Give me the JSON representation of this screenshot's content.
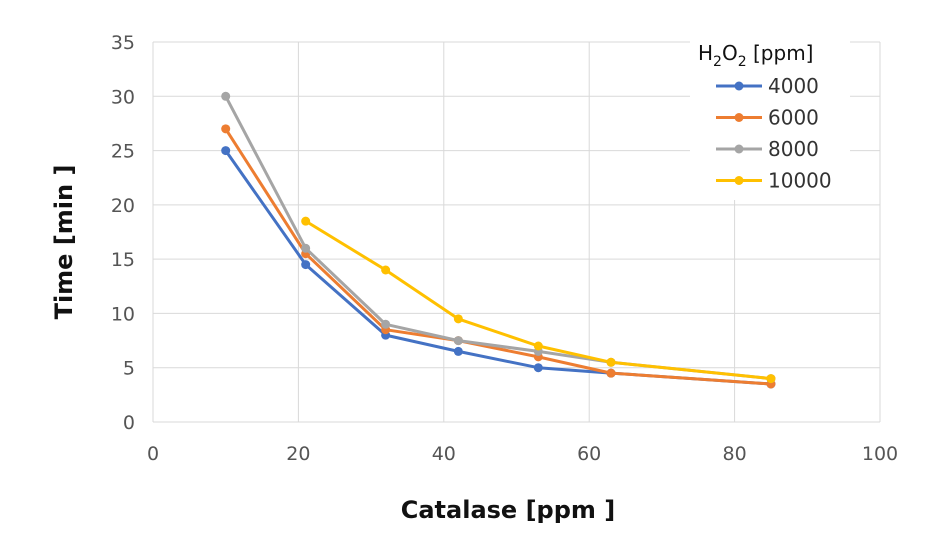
{
  "chart_data": {
    "type": "line",
    "xlabel": "Catalase [ppm ]",
    "ylabel": "Time [min ]",
    "xlim": [
      0,
      100
    ],
    "ylim": [
      0,
      35
    ],
    "xticks": [
      0,
      20,
      40,
      60,
      80,
      100
    ],
    "yticks": [
      0,
      5,
      10,
      15,
      20,
      25,
      30,
      35
    ],
    "grid": "both",
    "legend": {
      "position": "top-right",
      "title": {
        "main": "H",
        "sub1": "2",
        "mid": "O",
        "sub2": "2",
        "unit": " [ppm]"
      }
    },
    "series": [
      {
        "name": "4000",
        "color": "#4472C4",
        "points": [
          [
            10,
            25
          ],
          [
            21,
            14.5
          ],
          [
            32,
            8
          ],
          [
            42,
            6.5
          ],
          [
            53,
            5
          ],
          [
            63,
            4.5
          ],
          [
            85,
            3.5
          ]
        ]
      },
      {
        "name": "6000",
        "color": "#ED7D31",
        "points": [
          [
            10,
            27
          ],
          [
            21,
            15.5
          ],
          [
            32,
            8.5
          ],
          [
            42,
            7.5
          ],
          [
            53,
            6
          ],
          [
            63,
            4.5
          ],
          [
            85,
            3.5
          ]
        ]
      },
      {
        "name": "8000",
        "color": "#A5A5A5",
        "points": [
          [
            10,
            30
          ],
          [
            21,
            16
          ],
          [
            32,
            9
          ],
          [
            42,
            7.5
          ],
          [
            53,
            6.5
          ],
          [
            63,
            5.5
          ],
          [
            85,
            4
          ]
        ]
      },
      {
        "name": "10000",
        "color": "#FFC000",
        "points": [
          [
            21,
            18.5
          ],
          [
            32,
            14
          ],
          [
            42,
            9.5
          ],
          [
            53,
            7
          ],
          [
            63,
            5.5
          ],
          [
            85,
            4
          ]
        ]
      }
    ]
  }
}
